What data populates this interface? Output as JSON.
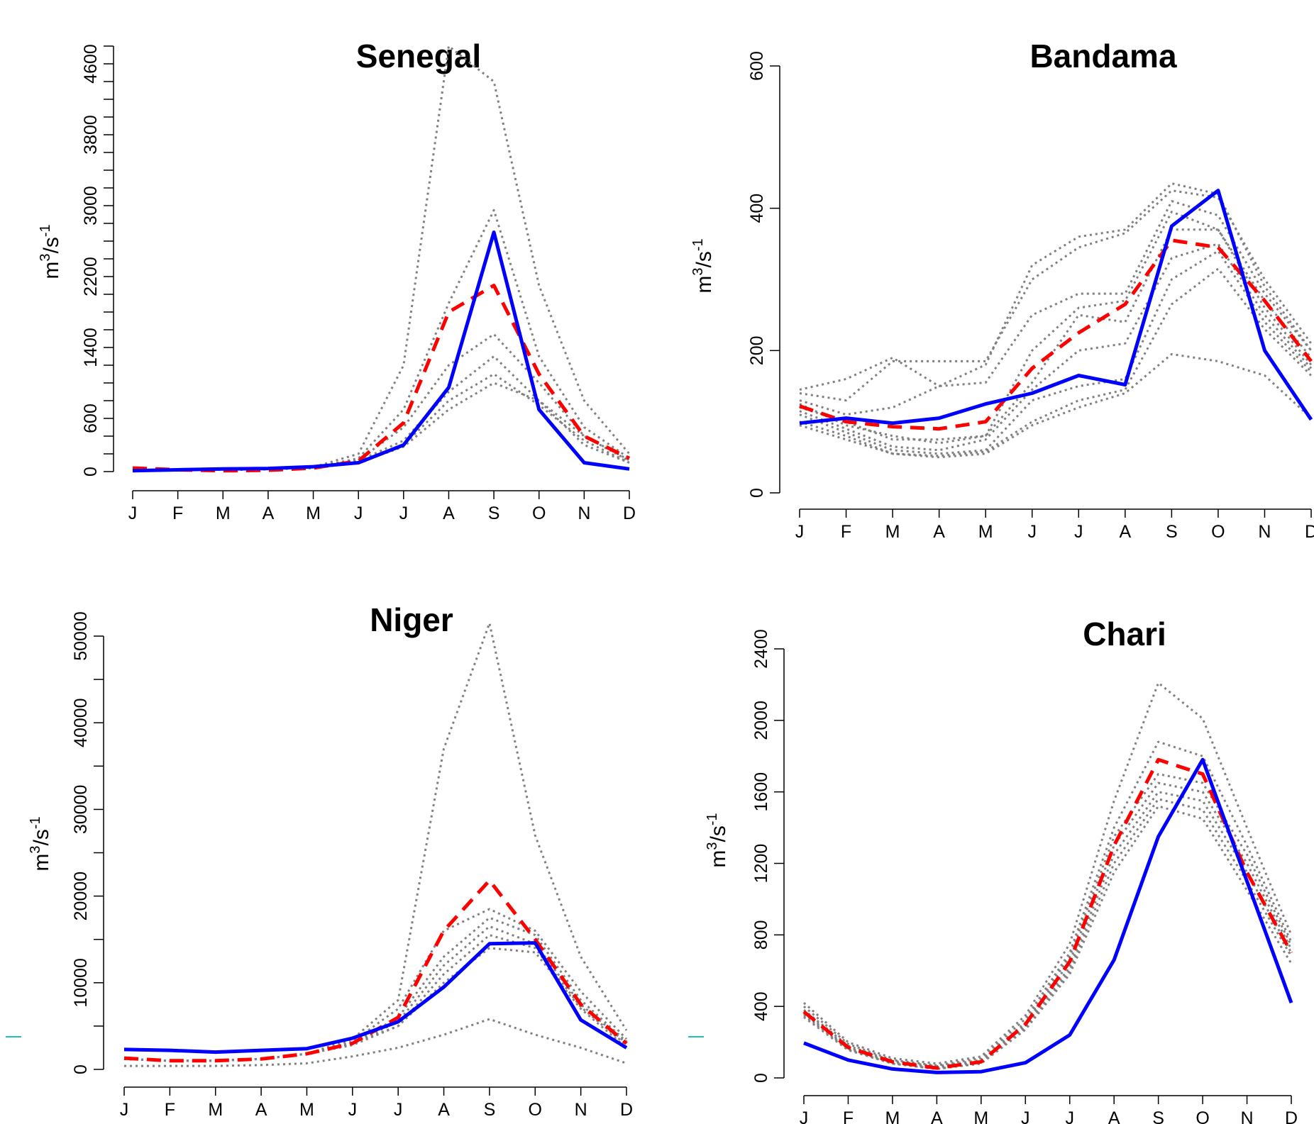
{
  "chart_data": [
    {
      "type": "line",
      "title": "Senegal",
      "ylabel": {
        "base": "m",
        "sup1": "3",
        "mid": "/s",
        "sup2": "-1"
      },
      "x_tick_labels": [
        "J",
        "F",
        "M",
        "A",
        "M",
        "J",
        "J",
        "A",
        "S",
        "O",
        "N",
        "D"
      ],
      "y_ticks": [
        0,
        600,
        1400,
        2200,
        3000,
        3800,
        4600
      ],
      "y_minor_ticks": [
        0,
        200,
        400,
        600,
        800,
        1000,
        1200,
        1400,
        1600,
        1800,
        2000,
        2200,
        2400,
        2600,
        2800,
        3000,
        3200,
        3400,
        3600,
        3800,
        4000,
        4200,
        4400,
        4600,
        4800
      ],
      "ylim": [
        0,
        4800
      ],
      "colors": {
        "observed": "#0000ff",
        "ensemble_mean": "#ff0000",
        "members": "#808080"
      },
      "series": [
        {
          "role": "observed",
          "values": [
            10,
            20,
            30,
            35,
            55,
            100,
            300,
            950,
            2700,
            700,
            100,
            30
          ]
        },
        {
          "role": "ensemble_mean",
          "values": [
            40,
            20,
            10,
            15,
            40,
            120,
            550,
            1800,
            2100,
            1100,
            400,
            150
          ]
        },
        {
          "role": "member",
          "values": [
            20,
            20,
            20,
            25,
            50,
            200,
            1200,
            4800,
            4400,
            2100,
            800,
            200
          ]
        },
        {
          "role": "member",
          "values": [
            20,
            20,
            20,
            25,
            45,
            150,
            700,
            1900,
            2950,
            1300,
            500,
            150
          ]
        },
        {
          "role": "member",
          "values": [
            20,
            20,
            20,
            25,
            45,
            130,
            500,
            1200,
            1550,
            1000,
            400,
            120
          ]
        },
        {
          "role": "member",
          "values": [
            20,
            20,
            20,
            25,
            45,
            120,
            350,
            900,
            1300,
            800,
            300,
            100
          ]
        },
        {
          "role": "member",
          "values": [
            20,
            20,
            20,
            25,
            40,
            100,
            300,
            800,
            1100,
            750,
            350,
            100
          ]
        },
        {
          "role": "member",
          "values": [
            20,
            20,
            20,
            25,
            40,
            100,
            280,
            700,
            1000,
            800,
            400,
            130
          ]
        }
      ]
    },
    {
      "type": "line",
      "title": "Bandama",
      "ylabel": {
        "base": "m",
        "sup1": "3",
        "mid": "/s",
        "sup2": "-1"
      },
      "x_tick_labels": [
        "J",
        "F",
        "M",
        "A",
        "M",
        "J",
        "J",
        "A",
        "S",
        "O",
        "N",
        "D"
      ],
      "y_ticks": [
        0,
        200,
        400,
        600
      ],
      "y_minor_ticks": [
        0,
        200,
        400,
        600
      ],
      "ylim": [
        0,
        600
      ],
      "colors": {
        "observed": "#0000ff",
        "ensemble_mean": "#ff0000",
        "members": "#808080"
      },
      "series": [
        {
          "role": "observed",
          "values": [
            98,
            105,
            98,
            105,
            125,
            140,
            165,
            152,
            375,
            425,
            200,
            103
          ]
        },
        {
          "role": "ensemble_mean",
          "values": [
            122,
            100,
            93,
            90,
            100,
            175,
            225,
            265,
            355,
            345,
            270,
            185
          ]
        },
        {
          "role": "member",
          "values": [
            145,
            160,
            190,
            150,
            180,
            320,
            360,
            370,
            435,
            420,
            290,
            200
          ]
        },
        {
          "role": "member",
          "values": [
            140,
            130,
            185,
            185,
            185,
            300,
            345,
            365,
            425,
            415,
            300,
            210
          ]
        },
        {
          "role": "member",
          "values": [
            130,
            110,
            120,
            150,
            155,
            250,
            280,
            280,
            410,
            390,
            280,
            200
          ]
        },
        {
          "role": "member",
          "values": [
            125,
            95,
            80,
            70,
            80,
            200,
            260,
            270,
            395,
            370,
            270,
            190
          ]
        },
        {
          "role": "member",
          "values": [
            120,
            100,
            75,
            75,
            80,
            155,
            250,
            240,
            370,
            370,
            260,
            180
          ]
        },
        {
          "role": "member",
          "values": [
            115,
            90,
            65,
            60,
            75,
            145,
            200,
            210,
            330,
            350,
            250,
            175
          ]
        },
        {
          "role": "member",
          "values": [
            110,
            85,
            60,
            55,
            60,
            130,
            150,
            160,
            300,
            340,
            240,
            170
          ]
        },
        {
          "role": "member",
          "values": [
            100,
            80,
            55,
            52,
            58,
            100,
            130,
            145,
            265,
            315,
            230,
            165
          ]
        },
        {
          "role": "member",
          "values": [
            95,
            75,
            55,
            50,
            55,
            95,
            120,
            140,
            195,
            185,
            165,
            105
          ]
        }
      ]
    },
    {
      "type": "line",
      "title": "Niger",
      "ylabel": {
        "base": "m",
        "sup1": "3",
        "mid": "/s",
        "sup2": "-1"
      },
      "x_tick_labels": [
        "J",
        "F",
        "M",
        "A",
        "M",
        "J",
        "J",
        "A",
        "S",
        "O",
        "N",
        "D"
      ],
      "y_ticks": [
        0,
        10000,
        20000,
        30000,
        40000,
        50000
      ],
      "y_minor_ticks": [
        0,
        5000,
        10000,
        15000,
        20000,
        25000,
        30000,
        35000,
        40000,
        45000,
        50000
      ],
      "ylim": [
        0,
        50000
      ],
      "colors": {
        "observed": "#0000ff",
        "ensemble_mean": "#ff0000",
        "members": "#808080"
      },
      "series": [
        {
          "role": "observed",
          "values": [
            2300,
            2200,
            2000,
            2200,
            2400,
            3600,
            5500,
            9500,
            14500,
            14600,
            5700,
            2500
          ]
        },
        {
          "role": "ensemble_mean",
          "values": [
            1300,
            1000,
            1000,
            1200,
            1800,
            3000,
            6000,
            16000,
            21800,
            15000,
            7500,
            3000
          ]
        },
        {
          "role": "member",
          "values": [
            1200,
            1000,
            1000,
            1200,
            1800,
            3500,
            8000,
            37000,
            51500,
            27000,
            13000,
            4500
          ]
        },
        {
          "role": "member",
          "values": [
            1200,
            1000,
            1000,
            1200,
            1800,
            3200,
            7000,
            16000,
            18500,
            16000,
            9000,
            3500
          ]
        },
        {
          "role": "member",
          "values": [
            1200,
            1000,
            1000,
            1200,
            1800,
            3000,
            6000,
            13000,
            17500,
            15500,
            8000,
            3200
          ]
        },
        {
          "role": "member",
          "values": [
            1200,
            1000,
            1000,
            1200,
            1800,
            3000,
            5500,
            12000,
            16500,
            14500,
            7500,
            3000
          ]
        },
        {
          "role": "member",
          "values": [
            1200,
            1000,
            1000,
            1200,
            1800,
            3000,
            5000,
            11000,
            15500,
            14000,
            7200,
            2800
          ]
        },
        {
          "role": "member",
          "values": [
            1200,
            1000,
            1000,
            1200,
            1800,
            2800,
            5000,
            10000,
            14000,
            13500,
            7000,
            2500
          ]
        },
        {
          "role": "member",
          "values": [
            400,
            400,
            400,
            500,
            700,
            1500,
            2500,
            4000,
            5800,
            4000,
            2500,
            700
          ]
        }
      ]
    },
    {
      "type": "line",
      "title": "Chari",
      "ylabel": {
        "base": "m",
        "sup1": "3",
        "mid": "/s",
        "sup2": "-1"
      },
      "x_tick_labels": [
        "J",
        "F",
        "M",
        "A",
        "M",
        "J",
        "J",
        "A",
        "S",
        "O",
        "N",
        "D"
      ],
      "y_ticks": [
        0,
        400,
        800,
        1200,
        1600,
        2000,
        2400
      ],
      "y_minor_ticks": [
        0,
        400,
        800,
        1200,
        1600,
        2000,
        2400
      ],
      "ylim": [
        0,
        2400
      ],
      "colors": {
        "observed": "#0000ff",
        "ensemble_mean": "#ff0000",
        "members": "#808080"
      },
      "series": [
        {
          "role": "observed",
          "values": [
            195,
            100,
            50,
            30,
            35,
            85,
            240,
            660,
            1350,
            1780,
            1100,
            420
          ]
        },
        {
          "role": "ensemble_mean",
          "values": [
            370,
            170,
            90,
            55,
            90,
            300,
            650,
            1300,
            1780,
            1700,
            1150,
            700
          ]
        },
        {
          "role": "member",
          "values": [
            420,
            200,
            110,
            80,
            120,
            350,
            750,
            1550,
            2210,
            2010,
            1400,
            800
          ]
        },
        {
          "role": "member",
          "values": [
            400,
            190,
            100,
            70,
            110,
            330,
            700,
            1400,
            1880,
            1800,
            1300,
            760
          ]
        },
        {
          "role": "member",
          "values": [
            380,
            180,
            95,
            65,
            100,
            310,
            680,
            1350,
            1700,
            1650,
            1250,
            740
          ]
        },
        {
          "role": "member",
          "values": [
            370,
            170,
            90,
            60,
            95,
            300,
            650,
            1300,
            1650,
            1600,
            1200,
            720
          ]
        },
        {
          "role": "member",
          "values": [
            360,
            165,
            85,
            55,
            90,
            290,
            620,
            1250,
            1600,
            1550,
            1150,
            700
          ]
        },
        {
          "role": "member",
          "values": [
            350,
            160,
            80,
            50,
            85,
            280,
            600,
            1200,
            1560,
            1500,
            1100,
            680
          ]
        },
        {
          "role": "member",
          "values": [
            340,
            155,
            80,
            50,
            80,
            270,
            580,
            1150,
            1520,
            1450,
            1050,
            640
          ]
        }
      ]
    }
  ]
}
